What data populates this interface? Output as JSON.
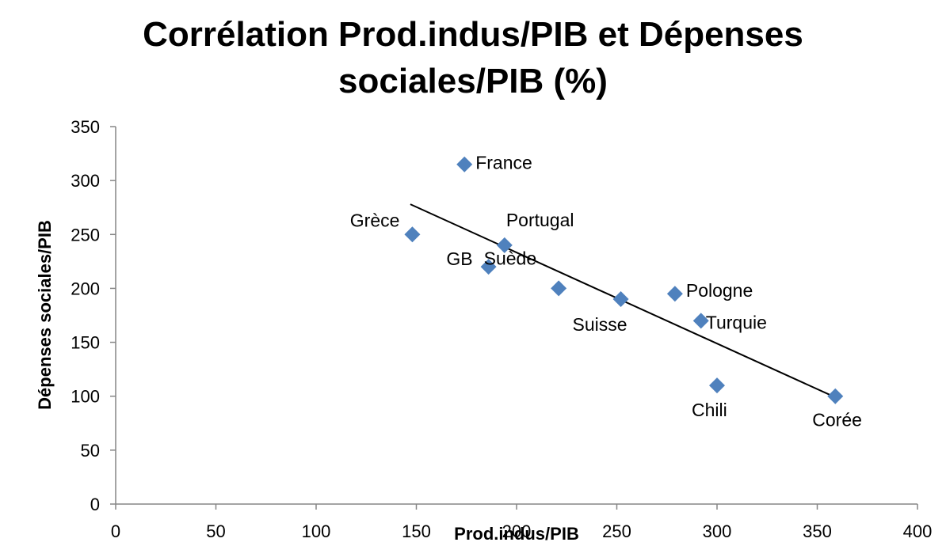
{
  "chart_data": {
    "type": "scatter",
    "title_lines": [
      "Corrélation Prod.indus/PIB et Dépenses",
      "sociales/PIB  (%)"
    ],
    "xlabel": "Prod.indus/PIB",
    "ylabel": "Dépenses sociales/PIB",
    "xlim": [
      0,
      400
    ],
    "ylim": [
      0,
      350
    ],
    "xticks": [
      0,
      50,
      100,
      150,
      200,
      250,
      300,
      350,
      400
    ],
    "yticks": [
      0,
      50,
      100,
      150,
      200,
      250,
      300,
      350
    ],
    "grid": false,
    "marker_color": "#4F81BD",
    "trendline_color": "#000000",
    "points": [
      {
        "label": "France",
        "x": 174,
        "y": 315
      },
      {
        "label": "Grèce",
        "x": 148,
        "y": 250
      },
      {
        "label": "Portugal",
        "x": 194,
        "y": 240
      },
      {
        "label": "GB",
        "x": 186,
        "y": 220
      },
      {
        "label": "Suède",
        "x": 221,
        "y": 200
      },
      {
        "label": "Suisse",
        "x": 252,
        "y": 190
      },
      {
        "label": "Pologne",
        "x": 279,
        "y": 195
      },
      {
        "label": "Turquie",
        "x": 292,
        "y": 170
      },
      {
        "label": "Chili",
        "x": 300,
        "y": 110
      },
      {
        "label": "Corée",
        "x": 359,
        "y": 100
      }
    ],
    "trendline": {
      "x": [
        147,
        359
      ],
      "y": [
        278,
        99
      ]
    }
  }
}
